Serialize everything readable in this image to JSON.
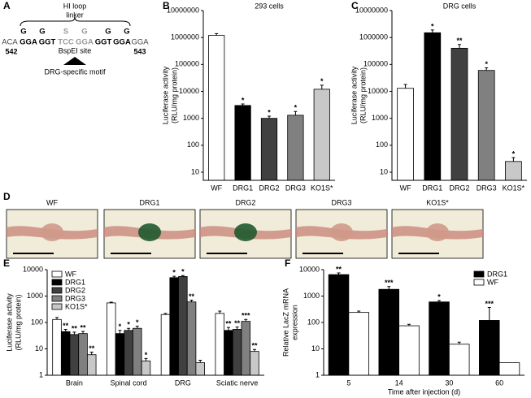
{
  "diagram": {
    "panel_label": "A",
    "title": [
      "HI loop",
      "linker"
    ],
    "residues": [
      "G",
      "G",
      "S",
      "G",
      "G",
      "G"
    ],
    "prefix": "ACA",
    "codons": [
      "GGA",
      "GGT",
      "TCC",
      "GGA",
      "GGT",
      "GGA"
    ],
    "suffix": "GGA",
    "positions": [
      542,
      543
    ],
    "site_label": "BspEI site",
    "motif_label": "DRG-specific motif"
  },
  "photos": {
    "panel_label": "D",
    "labels": [
      "WF",
      "DRG1",
      "DRG2",
      "DRG3",
      "KO1S*"
    ]
  },
  "chart_data": [
    {
      "type": "bar",
      "panel_label": "B",
      "title": "293 cells",
      "ylabel": [
        "Luciferase activity",
        "(RLU/mg protein)"
      ],
      "categories": [
        "WF",
        "DRG1",
        "DRG2",
        "DRG3",
        "KO1S*"
      ],
      "values": [
        1200000,
        3000,
        1000,
        1300,
        12000
      ],
      "errors": [
        200000,
        400,
        200,
        500,
        5000
      ],
      "significance": [
        null,
        "*",
        "*",
        "*",
        "*"
      ],
      "colors": [
        "#ffffff",
        "#000000",
        "#404040",
        "#808080",
        "#c8c8c8"
      ],
      "log_scale": true,
      "ylim": [
        5,
        10000000
      ],
      "yticks": [
        10,
        100,
        1000,
        10000,
        100000,
        1000000,
        10000000
      ]
    },
    {
      "type": "bar",
      "panel_label": "C",
      "title": "DRG cells",
      "ylabel": [
        "Luciferase activity",
        "(RLU/mg protein)"
      ],
      "categories": [
        "WF",
        "DRG1",
        "DRG2",
        "DRG3",
        "KO1S*"
      ],
      "values": [
        13000,
        1500000,
        400000,
        60000,
        25
      ],
      "errors": [
        5000,
        400000,
        150000,
        15000,
        10
      ],
      "significance": [
        null,
        "*",
        "**",
        "*",
        "*"
      ],
      "colors": [
        "#ffffff",
        "#000000",
        "#404040",
        "#808080",
        "#c8c8c8"
      ],
      "log_scale": true,
      "ylim": [
        5,
        10000000
      ],
      "yticks": [
        10,
        100,
        1000,
        10000,
        100000,
        1000000,
        10000000
      ]
    },
    {
      "type": "bar",
      "panel_label": "E",
      "ylabel": [
        "Luciferase activity",
        "(RLU/mg protein)"
      ],
      "categories": [
        "Brain",
        "Spinal cord",
        "DRG",
        "Sciatic nerve"
      ],
      "log_scale": true,
      "legend": "upper left",
      "ylim": [
        1,
        10000
      ],
      "yticks": [
        1,
        10,
        100,
        1000,
        10000
      ],
      "series": [
        {
          "name": "WF",
          "color": "#ffffff",
          "values": [
            130,
            550,
            200,
            220
          ],
          "errors": [
            25,
            40,
            20,
            50
          ]
        },
        {
          "name": "DRG1",
          "color": "#000000",
          "values": [
            45,
            38,
            5000,
            50
          ],
          "errors": [
            10,
            12,
            600,
            15
          ],
          "significance": [
            "**",
            "*",
            "*",
            "**"
          ]
        },
        {
          "name": "DRG2",
          "color": "#404040",
          "values": [
            35,
            50,
            5500,
            55
          ],
          "errors": [
            8,
            10,
            500,
            12
          ],
          "significance": [
            "**",
            "*",
            "*",
            "**"
          ]
        },
        {
          "name": "DRG3",
          "color": "#808080",
          "values": [
            38,
            60,
            600,
            110
          ],
          "errors": [
            8,
            12,
            100,
            20
          ],
          "significance": [
            "**",
            "*",
            "**",
            "***"
          ]
        },
        {
          "name": "KO1S*",
          "color": "#c8c8c8",
          "values": [
            6,
            3.5,
            3,
            8
          ],
          "errors": [
            1.5,
            0.8,
            0.7,
            1.5
          ],
          "significance": [
            "**",
            "*",
            null,
            "**"
          ]
        }
      ]
    },
    {
      "type": "bar",
      "panel_label": "F",
      "ylabel": [
        "Relative LacZ mRNA",
        "expression"
      ],
      "xlabel": "Time after injection (d)",
      "categories": [
        "5",
        "14",
        "30",
        "60"
      ],
      "log_scale": true,
      "legend": "upper right",
      "ylim": [
        1,
        10000
      ],
      "yticks": [
        1,
        10,
        100,
        1000,
        10000
      ],
      "series": [
        {
          "name": "DRG1",
          "color": "#000000",
          "values": [
            6500,
            1800,
            600,
            120
          ],
          "errors": [
            1000,
            500,
            80,
            250
          ],
          "significance": [
            "**",
            "***",
            "*",
            "***"
          ]
        },
        {
          "name": "WF",
          "color": "#ffffff",
          "values": [
            240,
            75,
            15,
            3
          ],
          "errors": [
            30,
            10,
            3,
            null
          ]
        }
      ]
    }
  ]
}
